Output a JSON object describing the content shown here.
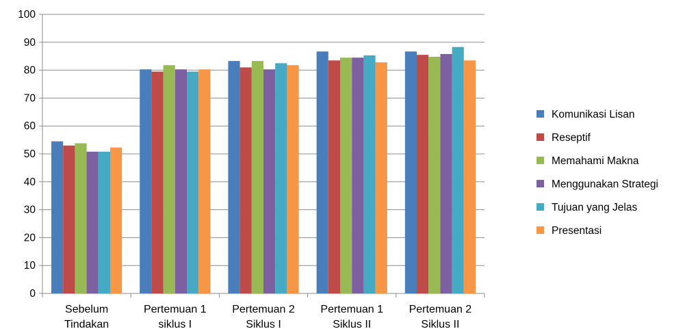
{
  "chart_data": {
    "type": "bar",
    "categories": [
      [
        "Sebelum",
        "Tindakan"
      ],
      [
        "Pertemuan 1",
        "siklus I"
      ],
      [
        "Pertemuan 2",
        "Siklus I"
      ],
      [
        "Pertemuan 1",
        "Siklus II"
      ],
      [
        "Pertemuan 2",
        "Siklus II"
      ]
    ],
    "series": [
      {
        "name": "Komunikasi Lisan",
        "color": "#4a7ebb",
        "values": [
          54.5,
          80.3,
          83.3,
          86.7,
          86.7
        ]
      },
      {
        "name": "Reseptif",
        "color": "#be4b48",
        "values": [
          53.0,
          79.5,
          81.0,
          83.5,
          85.5
        ]
      },
      {
        "name": "Memahami Makna",
        "color": "#98b954",
        "values": [
          53.8,
          81.8,
          83.3,
          84.5,
          84.8
        ]
      },
      {
        "name": "Menggunakan Strategi",
        "color": "#7d60a0",
        "values": [
          50.8,
          80.3,
          80.3,
          84.5,
          85.8
        ]
      },
      {
        "name": "Tujuan yang Jelas",
        "color": "#46aac5",
        "values": [
          50.8,
          79.5,
          82.5,
          85.3,
          88.3
        ]
      },
      {
        "name": "Presentasi",
        "color": "#f79646",
        "values": [
          52.3,
          80.3,
          81.8,
          82.8,
          83.5
        ]
      }
    ],
    "ylim": [
      0,
      100
    ],
    "yticks": [
      0,
      10,
      20,
      30,
      40,
      50,
      60,
      70,
      80,
      90,
      100
    ],
    "grid": true,
    "legend_position": "right",
    "title": "",
    "xlabel": "",
    "ylabel": ""
  }
}
